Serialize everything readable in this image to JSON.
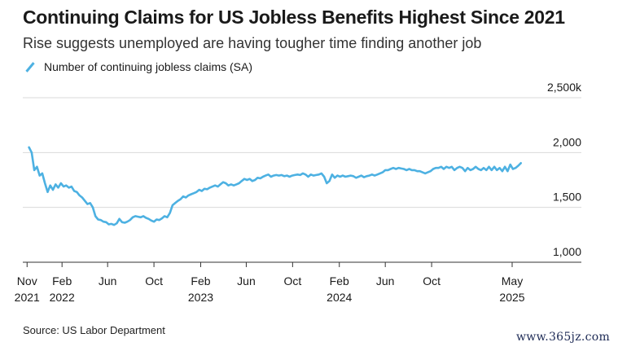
{
  "chart_data": {
    "type": "line",
    "title": "Continuing Claims for US Jobless Benefits Highest Since 2021",
    "subtitle": "Rise suggests unemployed are having tougher time finding another job",
    "series": [
      {
        "name": "Number of continuing jobless claims (SA)",
        "color": "#4db1e2",
        "points": [
          [
            "2021-11-06",
            2048
          ],
          [
            "2021-11-13",
            2000
          ],
          [
            "2021-11-20",
            1840
          ],
          [
            "2021-11-27",
            1870
          ],
          [
            "2021-12-04",
            1790
          ],
          [
            "2021-12-11",
            1810
          ],
          [
            "2021-12-18",
            1720
          ],
          [
            "2021-12-25",
            1640
          ],
          [
            "2022-01-01",
            1700
          ],
          [
            "2022-01-08",
            1660
          ],
          [
            "2022-01-15",
            1710
          ],
          [
            "2022-01-22",
            1680
          ],
          [
            "2022-01-29",
            1720
          ],
          [
            "2022-02-05",
            1690
          ],
          [
            "2022-02-12",
            1700
          ],
          [
            "2022-02-19",
            1680
          ],
          [
            "2022-02-26",
            1690
          ],
          [
            "2022-03-05",
            1650
          ],
          [
            "2022-03-12",
            1640
          ],
          [
            "2022-03-19",
            1610
          ],
          [
            "2022-03-26",
            1590
          ],
          [
            "2022-04-02",
            1560
          ],
          [
            "2022-04-09",
            1530
          ],
          [
            "2022-04-16",
            1540
          ],
          [
            "2022-04-23",
            1500
          ],
          [
            "2022-04-30",
            1420
          ],
          [
            "2022-05-07",
            1390
          ],
          [
            "2022-05-14",
            1385
          ],
          [
            "2022-05-21",
            1370
          ],
          [
            "2022-05-28",
            1365
          ],
          [
            "2022-06-04",
            1345
          ],
          [
            "2022-06-11",
            1350
          ],
          [
            "2022-06-18",
            1340
          ],
          [
            "2022-06-25",
            1355
          ],
          [
            "2022-07-02",
            1395
          ],
          [
            "2022-07-09",
            1365
          ],
          [
            "2022-07-16",
            1360
          ],
          [
            "2022-07-23",
            1370
          ],
          [
            "2022-07-30",
            1385
          ],
          [
            "2022-08-06",
            1410
          ],
          [
            "2022-08-13",
            1420
          ],
          [
            "2022-08-20",
            1415
          ],
          [
            "2022-08-27",
            1410
          ],
          [
            "2022-09-03",
            1420
          ],
          [
            "2022-09-10",
            1405
          ],
          [
            "2022-09-17",
            1395
          ],
          [
            "2022-09-24",
            1380
          ],
          [
            "2022-10-01",
            1370
          ],
          [
            "2022-10-08",
            1390
          ],
          [
            "2022-10-15",
            1385
          ],
          [
            "2022-10-22",
            1400
          ],
          [
            "2022-10-29",
            1420
          ],
          [
            "2022-11-05",
            1410
          ],
          [
            "2022-11-12",
            1450
          ],
          [
            "2022-11-19",
            1520
          ],
          [
            "2022-11-26",
            1540
          ],
          [
            "2022-12-03",
            1560
          ],
          [
            "2022-12-10",
            1575
          ],
          [
            "2022-12-17",
            1600
          ],
          [
            "2022-12-24",
            1590
          ],
          [
            "2022-12-31",
            1610
          ],
          [
            "2023-01-07",
            1620
          ],
          [
            "2023-01-14",
            1630
          ],
          [
            "2023-01-21",
            1640
          ],
          [
            "2023-01-28",
            1660
          ],
          [
            "2023-02-04",
            1650
          ],
          [
            "2023-02-11",
            1670
          ],
          [
            "2023-02-18",
            1665
          ],
          [
            "2023-02-25",
            1680
          ],
          [
            "2023-03-04",
            1690
          ],
          [
            "2023-03-11",
            1700
          ],
          [
            "2023-03-18",
            1690
          ],
          [
            "2023-03-25",
            1710
          ],
          [
            "2023-04-01",
            1730
          ],
          [
            "2023-04-08",
            1720
          ],
          [
            "2023-04-15",
            1700
          ],
          [
            "2023-04-22",
            1710
          ],
          [
            "2023-04-29",
            1700
          ],
          [
            "2023-05-06",
            1710
          ],
          [
            "2023-05-13",
            1720
          ],
          [
            "2023-05-20",
            1740
          ],
          [
            "2023-05-27",
            1760
          ],
          [
            "2023-06-03",
            1750
          ],
          [
            "2023-06-10",
            1760
          ],
          [
            "2023-06-17",
            1740
          ],
          [
            "2023-06-24",
            1750
          ],
          [
            "2023-07-01",
            1770
          ],
          [
            "2023-07-08",
            1765
          ],
          [
            "2023-07-15",
            1780
          ],
          [
            "2023-07-22",
            1790
          ],
          [
            "2023-07-29",
            1800
          ],
          [
            "2023-08-05",
            1780
          ],
          [
            "2023-08-12",
            1790
          ],
          [
            "2023-08-19",
            1795
          ],
          [
            "2023-08-26",
            1790
          ],
          [
            "2023-09-02",
            1795
          ],
          [
            "2023-09-09",
            1785
          ],
          [
            "2023-09-16",
            1790
          ],
          [
            "2023-09-23",
            1780
          ],
          [
            "2023-09-30",
            1790
          ],
          [
            "2023-10-07",
            1795
          ],
          [
            "2023-10-14",
            1800
          ],
          [
            "2023-10-21",
            1795
          ],
          [
            "2023-10-28",
            1810
          ],
          [
            "2023-11-04",
            1800
          ],
          [
            "2023-11-11",
            1780
          ],
          [
            "2023-11-18",
            1800
          ],
          [
            "2023-11-25",
            1790
          ],
          [
            "2023-12-02",
            1795
          ],
          [
            "2023-12-09",
            1800
          ],
          [
            "2023-12-16",
            1810
          ],
          [
            "2023-12-23",
            1780
          ],
          [
            "2023-12-30",
            1720
          ],
          [
            "2024-01-06",
            1740
          ],
          [
            "2024-01-13",
            1800
          ],
          [
            "2024-01-20",
            1770
          ],
          [
            "2024-01-27",
            1790
          ],
          [
            "2024-02-03",
            1780
          ],
          [
            "2024-02-10",
            1790
          ],
          [
            "2024-02-17",
            1780
          ],
          [
            "2024-02-24",
            1785
          ],
          [
            "2024-03-02",
            1790
          ],
          [
            "2024-03-09",
            1785
          ],
          [
            "2024-03-16",
            1770
          ],
          [
            "2024-03-23",
            1780
          ],
          [
            "2024-03-30",
            1790
          ],
          [
            "2024-04-06",
            1775
          ],
          [
            "2024-04-13",
            1785
          ],
          [
            "2024-04-20",
            1790
          ],
          [
            "2024-04-27",
            1800
          ],
          [
            "2024-05-04",
            1790
          ],
          [
            "2024-05-11",
            1800
          ],
          [
            "2024-05-18",
            1810
          ],
          [
            "2024-05-25",
            1820
          ],
          [
            "2024-06-01",
            1840
          ],
          [
            "2024-06-08",
            1840
          ],
          [
            "2024-06-15",
            1850
          ],
          [
            "2024-06-22",
            1860
          ],
          [
            "2024-06-29",
            1850
          ],
          [
            "2024-07-06",
            1860
          ],
          [
            "2024-07-13",
            1855
          ],
          [
            "2024-07-20",
            1850
          ],
          [
            "2024-07-27",
            1840
          ],
          [
            "2024-08-03",
            1850
          ],
          [
            "2024-08-10",
            1840
          ],
          [
            "2024-08-17",
            1840
          ],
          [
            "2024-08-24",
            1830
          ],
          [
            "2024-08-31",
            1830
          ],
          [
            "2024-09-07",
            1820
          ],
          [
            "2024-09-14",
            1810
          ],
          [
            "2024-09-21",
            1820
          ],
          [
            "2024-09-28",
            1830
          ],
          [
            "2024-10-05",
            1850
          ],
          [
            "2024-10-12",
            1860
          ],
          [
            "2024-10-19",
            1860
          ],
          [
            "2024-10-26",
            1870
          ],
          [
            "2024-11-02",
            1850
          ],
          [
            "2024-11-09",
            1870
          ],
          [
            "2024-11-16",
            1860
          ],
          [
            "2024-11-23",
            1870
          ],
          [
            "2024-11-30",
            1840
          ],
          [
            "2024-12-07",
            1860
          ],
          [
            "2024-12-14",
            1870
          ],
          [
            "2024-12-21",
            1860
          ],
          [
            "2024-12-28",
            1830
          ],
          [
            "2025-01-04",
            1860
          ],
          [
            "2025-01-11",
            1840
          ],
          [
            "2025-01-18",
            1850
          ],
          [
            "2025-01-25",
            1870
          ],
          [
            "2025-02-01",
            1850
          ],
          [
            "2025-02-08",
            1840
          ],
          [
            "2025-02-15",
            1860
          ],
          [
            "2025-02-22",
            1840
          ],
          [
            "2025-03-01",
            1870
          ],
          [
            "2025-03-08",
            1840
          ],
          [
            "2025-03-15",
            1870
          ],
          [
            "2025-03-22",
            1840
          ],
          [
            "2025-03-29",
            1860
          ],
          [
            "2025-04-05",
            1830
          ],
          [
            "2025-04-12",
            1870
          ],
          [
            "2025-04-19",
            1830
          ],
          [
            "2025-04-26",
            1890
          ],
          [
            "2025-05-03",
            1850
          ],
          [
            "2025-05-10",
            1860
          ],
          [
            "2025-05-17",
            1880
          ],
          [
            "2025-05-24",
            1904
          ]
        ]
      }
    ],
    "xlim": [
      "2021-10-25",
      "2025-06-15"
    ],
    "ylim": [
      1000,
      2500
    ],
    "y_ticks": [
      1000,
      1500,
      2000,
      2500
    ],
    "y_tick_labels": [
      "1,000",
      "1,500",
      "2,000",
      "2,500k"
    ],
    "x_ticks": [
      {
        "date": "2021-11-01",
        "line1": "Nov",
        "line2": "2021"
      },
      {
        "date": "2022-02-01",
        "line1": "Feb",
        "line2": "2022"
      },
      {
        "date": "2022-06-01",
        "line1": "Jun",
        "line2": ""
      },
      {
        "date": "2022-10-01",
        "line1": "Oct",
        "line2": ""
      },
      {
        "date": "2023-02-01",
        "line1": "Feb",
        "line2": "2023"
      },
      {
        "date": "2023-06-01",
        "line1": "Jun",
        "line2": ""
      },
      {
        "date": "2023-10-01",
        "line1": "Oct",
        "line2": ""
      },
      {
        "date": "2024-02-01",
        "line1": "Feb",
        "line2": "2024"
      },
      {
        "date": "2024-06-01",
        "line1": "Jun",
        "line2": ""
      },
      {
        "date": "2024-10-01",
        "line1": "Oct",
        "line2": ""
      },
      {
        "date": "2025-05-01",
        "line1": "May",
        "line2": "2025"
      }
    ],
    "grid": true,
    "legend_position": "top-left",
    "source": "Source: US Labor Department"
  },
  "watermark": "www.365jz.com"
}
